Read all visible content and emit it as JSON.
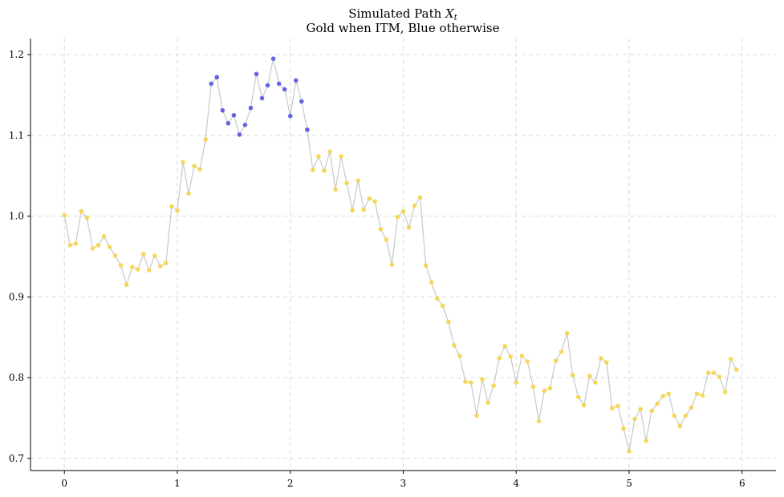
{
  "chart_data": {
    "type": "scatter",
    "title_line1": "Simulated Path ",
    "title_math_base": "X",
    "title_math_sub": "t",
    "title_line2": "Gold when ITM, Blue otherwise",
    "xlabel": "",
    "ylabel": "",
    "xlim": [
      -0.3,
      6.3
    ],
    "ylim": [
      0.685,
      1.22
    ],
    "xticks": [
      0,
      1,
      2,
      3,
      4,
      5,
      6
    ],
    "yticks": [
      0.7,
      0.8,
      0.9,
      1.0,
      1.1,
      1.2
    ],
    "ytick_labels": [
      "0.7",
      "0.8",
      "0.9",
      "1.0",
      "1.1",
      "1.2"
    ],
    "grid": true,
    "colors": {
      "itm": "#f5d54a",
      "otm": "#4b4be6",
      "line": "#c8c8c8"
    },
    "series": [
      {
        "dt": 0.05,
        "values": [
          1.001,
          0.964,
          0.966,
          1.006,
          0.998,
          0.96,
          0.964,
          0.975,
          0.962,
          0.951,
          0.939,
          0.915,
          0.937,
          0.934,
          0.953,
          0.933,
          0.951,
          0.938,
          0.942,
          1.012,
          1.007,
          1.067,
          1.028,
          1.062,
          1.058,
          1.095,
          1.164,
          1.172,
          1.131,
          1.115,
          1.125,
          1.101,
          1.113,
          1.134,
          1.176,
          1.146,
          1.162,
          1.195,
          1.164,
          1.157,
          1.124,
          1.168,
          1.142,
          1.107,
          1.057,
          1.074,
          1.056,
          1.08,
          1.033,
          1.074,
          1.041,
          1.007,
          1.044,
          1.008,
          1.022,
          1.018,
          0.984,
          0.971,
          0.94,
          0.999,
          1.006,
          0.986,
          1.013,
          1.023,
          0.939,
          0.918,
          0.898,
          0.889,
          0.869,
          0.84,
          0.827,
          0.795,
          0.794,
          0.753,
          0.798,
          0.769,
          0.79,
          0.824,
          0.839,
          0.826,
          0.794,
          0.827,
          0.82,
          0.789,
          0.746,
          0.784,
          0.787,
          0.821,
          0.832,
          0.855,
          0.803,
          0.776,
          0.766,
          0.802,
          0.794,
          0.824,
          0.819,
          0.762,
          0.765,
          0.737,
          0.709,
          0.749,
          0.761,
          0.722,
          0.759,
          0.768,
          0.777,
          0.78,
          0.753,
          0.74,
          0.753,
          0.763,
          0.78,
          0.778,
          0.806,
          0.806,
          0.801,
          0.782,
          0.823,
          0.81
        ],
        "itm": [
          true,
          true,
          true,
          true,
          true,
          true,
          true,
          true,
          true,
          true,
          true,
          true,
          true,
          true,
          true,
          true,
          true,
          true,
          true,
          true,
          true,
          true,
          true,
          true,
          true,
          true,
          false,
          false,
          false,
          false,
          false,
          false,
          false,
          false,
          false,
          false,
          false,
          false,
          false,
          false,
          false,
          false,
          false,
          false,
          true,
          true,
          true,
          true,
          true,
          true,
          true,
          true,
          true,
          true,
          true,
          true,
          true,
          true,
          true,
          true,
          true,
          true,
          true,
          true,
          true,
          true,
          true,
          true,
          true,
          true,
          true,
          true,
          true,
          true,
          true,
          true,
          true,
          true,
          true,
          true,
          true,
          true,
          true,
          true,
          true,
          true,
          true,
          true,
          true,
          true,
          true,
          true,
          true,
          true,
          true,
          true,
          true,
          true,
          true,
          true,
          true,
          true,
          true,
          true,
          true,
          true,
          true,
          true,
          true,
          true,
          true,
          true,
          true,
          true,
          true,
          true,
          true,
          true,
          true,
          true
        ]
      }
    ]
  }
}
